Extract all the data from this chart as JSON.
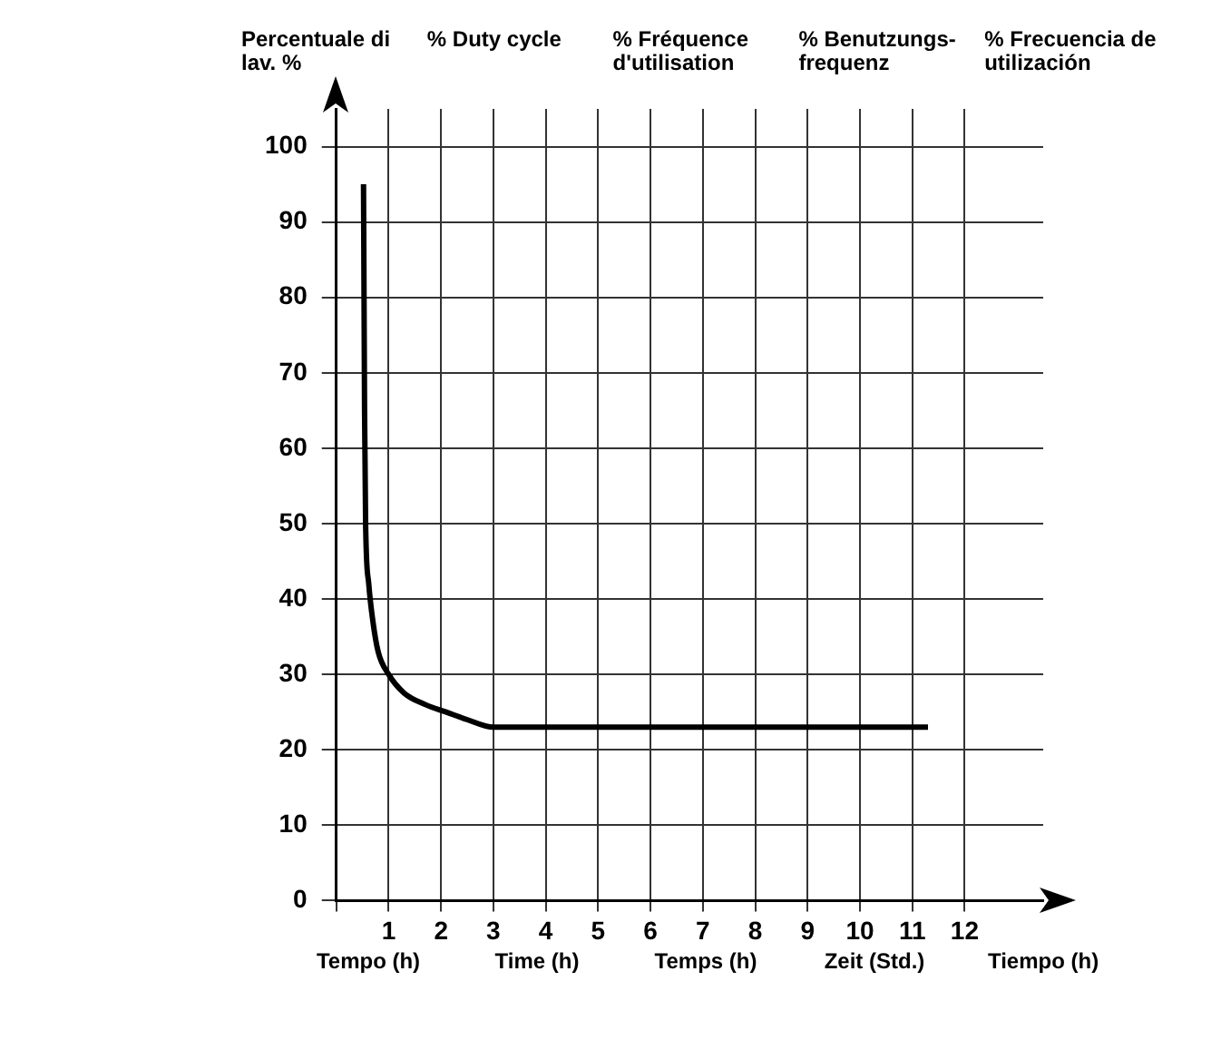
{
  "chart_data": {
    "type": "line",
    "ylabel": "Percentuale di lav. %",
    "xlabel": "Tempo (h)",
    "annotations": [
      "% Duty cycle",
      "% Fréquence d'utilisation",
      "% Benutzungs- frequenz",
      "% Frecuencia de utilización",
      "Time (h)",
      "Temps (h)",
      "Zeit (Std.)",
      "Tiempo (h)"
    ],
    "x": [
      0.52,
      0.53,
      0.54,
      0.56,
      0.62,
      0.7,
      0.8,
      1,
      1.3,
      1.7,
      2.1,
      2.5,
      3,
      3.5,
      4,
      6,
      8,
      10,
      11.3
    ],
    "series": [
      {
        "color": "#000000",
        "values": [
          95,
          80,
          65,
          50,
          42,
          37,
          33,
          30,
          27.5,
          26,
          25,
          24,
          23,
          23,
          23,
          23,
          23,
          23,
          23
        ]
      }
    ],
    "xlim": [
      0,
      13.5
    ],
    "ylim": [
      0,
      105
    ],
    "xticks": [
      {
        "value": 0,
        "label": null
      },
      1,
      2,
      3,
      4,
      5,
      6,
      7,
      8,
      9,
      10,
      11,
      12
    ],
    "yticks": [
      0,
      10,
      20,
      30,
      40,
      50,
      60,
      70,
      80,
      90,
      100
    ],
    "grid": true,
    "marker": "none",
    "line_style": "solid"
  }
}
